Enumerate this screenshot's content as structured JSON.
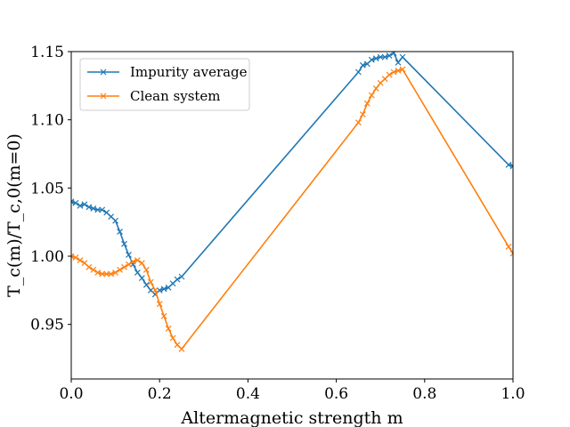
{
  "chart_data": {
    "type": "line",
    "xlabel": "Altermagnetic strength m",
    "ylabel": "T_c(m)/T_c,0(m=0)",
    "xlim": [
      0.0,
      1.0
    ],
    "ylim": [
      0.91,
      1.15
    ],
    "x_ticks": [
      "0.0",
      "0.2",
      "0.4",
      "0.6",
      "0.8",
      "1.0"
    ],
    "y_ticks": [
      "0.95",
      "1.00",
      "1.05",
      "1.10",
      "1.15"
    ],
    "grid": false,
    "legend_position": "upper-left",
    "series": [
      {
        "name": "Impurity average",
        "color": "#1f77b4",
        "marker": "x",
        "points": [
          [
            0.0,
            1.04
          ],
          [
            0.01,
            1.039
          ],
          [
            0.02,
            1.037
          ],
          [
            0.03,
            1.038
          ],
          [
            0.04,
            1.036
          ],
          [
            0.05,
            1.035
          ],
          [
            0.06,
            1.034
          ],
          [
            0.07,
            1.034
          ],
          [
            0.08,
            1.032
          ],
          [
            0.09,
            1.029
          ],
          [
            0.1,
            1.026
          ],
          [
            0.11,
            1.018
          ],
          [
            0.12,
            1.009
          ],
          [
            0.13,
            1.001
          ],
          [
            0.14,
            0.994
          ],
          [
            0.15,
            0.988
          ],
          [
            0.16,
            0.984
          ],
          [
            0.17,
            0.979
          ],
          [
            0.18,
            0.975
          ],
          [
            0.19,
            0.972
          ],
          [
            0.2,
            0.975
          ],
          [
            0.21,
            0.976
          ],
          [
            0.22,
            0.977
          ],
          [
            0.23,
            0.98
          ],
          [
            0.24,
            0.983
          ],
          [
            0.25,
            0.985
          ],
          [
            0.65,
            1.135
          ],
          [
            0.66,
            1.14
          ],
          [
            0.67,
            1.141
          ],
          [
            0.68,
            1.144
          ],
          [
            0.69,
            1.145
          ],
          [
            0.7,
            1.146
          ],
          [
            0.71,
            1.146
          ],
          [
            0.72,
            1.147
          ],
          [
            0.73,
            1.149
          ],
          [
            0.74,
            1.142
          ],
          [
            0.75,
            1.146
          ],
          [
            0.99,
            1.067
          ],
          [
            1.0,
            1.066
          ],
          [
            1.01,
            1.071
          ]
        ]
      },
      {
        "name": "Clean system",
        "color": "#ff7f0e",
        "marker": "x",
        "points": [
          [
            0.0,
            1.0
          ],
          [
            0.01,
            0.999
          ],
          [
            0.02,
            0.997
          ],
          [
            0.03,
            0.995
          ],
          [
            0.04,
            0.992
          ],
          [
            0.05,
            0.99
          ],
          [
            0.06,
            0.988
          ],
          [
            0.07,
            0.987
          ],
          [
            0.08,
            0.987
          ],
          [
            0.09,
            0.987
          ],
          [
            0.1,
            0.988
          ],
          [
            0.11,
            0.99
          ],
          [
            0.12,
            0.992
          ],
          [
            0.13,
            0.994
          ],
          [
            0.14,
            0.996
          ],
          [
            0.15,
            0.997
          ],
          [
            0.16,
            0.995
          ],
          [
            0.17,
            0.99
          ],
          [
            0.18,
            0.981
          ],
          [
            0.19,
            0.975
          ],
          [
            0.2,
            0.965
          ],
          [
            0.21,
            0.956
          ],
          [
            0.22,
            0.947
          ],
          [
            0.23,
            0.94
          ],
          [
            0.24,
            0.935
          ],
          [
            0.25,
            0.932
          ],
          [
            0.65,
            1.098
          ],
          [
            0.66,
            1.104
          ],
          [
            0.67,
            1.112
          ],
          [
            0.68,
            1.118
          ],
          [
            0.69,
            1.123
          ],
          [
            0.7,
            1.127
          ],
          [
            0.71,
            1.13
          ],
          [
            0.72,
            1.133
          ],
          [
            0.73,
            1.135
          ],
          [
            0.74,
            1.136
          ],
          [
            0.75,
            1.137
          ],
          [
            0.99,
            1.007
          ],
          [
            1.0,
            1.002
          ],
          [
            1.01,
            0.999
          ]
        ]
      }
    ]
  }
}
